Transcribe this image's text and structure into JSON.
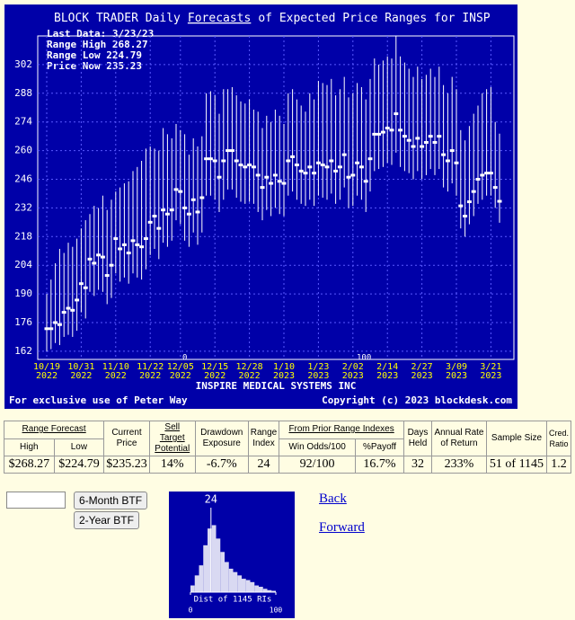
{
  "chart_data": [
    {
      "type": "range_bar",
      "title_prefix": "BLOCK TRADER Daily",
      "title_link": "Forecasts",
      "title_suffix": "of Expected Price Ranges for  INSP",
      "info": [
        "Last Data: 3/23/23",
        "Range High 268.27",
        "Range Low  224.79",
        "Price Now  235.23"
      ],
      "company": "INSPIRE MEDICAL SYSTEMS INC",
      "footer_left": "For exclusive use of Peter Way",
      "footer_right": "Copyright (c) 2023 blockdesk.com",
      "annotations": [
        "0",
        "100"
      ],
      "categories": [
        "10/19 2022",
        null,
        null,
        null,
        null,
        null,
        null,
        null,
        "10/31 2022",
        null,
        null,
        null,
        null,
        null,
        null,
        null,
        "11/10 2022",
        null,
        null,
        null,
        null,
        null,
        null,
        null,
        "11/22 2022",
        null,
        null,
        null,
        null,
        null,
        null,
        "12/05 2022",
        null,
        null,
        null,
        null,
        null,
        null,
        null,
        "12/15 2022",
        null,
        null,
        null,
        null,
        null,
        null,
        null,
        "12/28 2022",
        null,
        null,
        null,
        null,
        null,
        null,
        null,
        "1/10 2023",
        null,
        null,
        null,
        null,
        null,
        null,
        null,
        "1/23 2023",
        null,
        null,
        null,
        null,
        null,
        null,
        null,
        "2/02 2023",
        null,
        null,
        null,
        null,
        null,
        null,
        null,
        "2/14 2023",
        null,
        null,
        null,
        null,
        null,
        null,
        null,
        "2/27 2023",
        null,
        null,
        null,
        null,
        null,
        null,
        null,
        "3/09 2023",
        null,
        null,
        null,
        null,
        null,
        null,
        null,
        "3/21 2023",
        null,
        null
      ],
      "series": [
        {
          "color": "#ffffff",
          "values": [
            190,
            197,
            205,
            212,
            210,
            215,
            213,
            217,
            222,
            226,
            229,
            233,
            232,
            238,
            231,
            236,
            240,
            242,
            244,
            245,
            250,
            252,
            255,
            261,
            262,
            261,
            260,
            271,
            268,
            266,
            273,
            270,
            268,
            258,
            266,
            262,
            267,
            288,
            289,
            287,
            278,
            290,
            290,
            291,
            287,
            284,
            283,
            285,
            280,
            279,
            271,
            277,
            274,
            280,
            277,
            273,
            288,
            290,
            285,
            282,
            279,
            288,
            285,
            294,
            293,
            292,
            295,
            287,
            290,
            296,
            286,
            288,
            293,
            291,
            285,
            295,
            305,
            302,
            304,
            306,
            305,
            316,
            306,
            303,
            300,
            296,
            301,
            295,
            297,
            300,
            296,
            301,
            292,
            288,
            296,
            290,
            270,
            265,
            272,
            278,
            282,
            288,
            290,
            291,
            274,
            268.27
          ]
        },
        {
          "color": "#ffffff",
          "values": [
            162,
            163,
            166,
            165,
            169,
            170,
            169,
            172,
            181,
            178,
            191,
            189,
            192,
            191,
            185,
            188,
            200,
            196,
            198,
            195,
            200,
            198,
            197,
            202,
            209,
            212,
            207,
            215,
            213,
            216,
            226,
            224,
            216,
            213,
            220,
            214,
            220,
            238,
            238,
            236,
            230,
            236,
            241,
            241,
            237,
            235,
            234,
            235,
            234,
            230,
            226,
            231,
            228,
            232,
            229,
            228,
            238,
            240,
            236,
            234,
            233,
            236,
            233,
            238,
            237,
            236,
            239,
            234,
            236,
            242,
            232,
            233,
            238,
            236,
            230,
            240,
            250,
            251,
            252,
            254,
            253,
            259,
            252,
            250,
            249,
            246,
            250,
            246,
            248,
            251,
            248,
            251,
            242,
            240,
            244,
            238,
            222,
            218,
            224,
            228,
            234,
            236,
            238,
            238,
            232,
            224.79
          ]
        },
        {
          "color": "#ffffff",
          "values": [
            173,
            173,
            176,
            175,
            181,
            183,
            182,
            187,
            195,
            193,
            207,
            205,
            209,
            208,
            199,
            204,
            217,
            212,
            214,
            210,
            216,
            214,
            213,
            217,
            225,
            228,
            222,
            231,
            229,
            231,
            241,
            240,
            232,
            229,
            236,
            230,
            237,
            256,
            256,
            255,
            247,
            255,
            260,
            260,
            255,
            253,
            252,
            253,
            252,
            248,
            242,
            247,
            244,
            248,
            245,
            244,
            255,
            257,
            253,
            250,
            249,
            252,
            249,
            254,
            253,
            252,
            255,
            250,
            252,
            258,
            247,
            248,
            254,
            252,
            245,
            256,
            268,
            268,
            269,
            271,
            270,
            278,
            270,
            267,
            265,
            262,
            266,
            262,
            264,
            267,
            264,
            267,
            258,
            255,
            260,
            254,
            233,
            228,
            235,
            240,
            246,
            248,
            249,
            249,
            242,
            235.23
          ]
        }
      ],
      "ylim": [
        158,
        316
      ],
      "yticks": [
        162,
        176,
        190,
        204,
        218,
        232,
        246,
        260,
        274,
        288,
        302
      ],
      "grid": true
    },
    {
      "type": "histogram",
      "title": "Dist of 1145 RIs",
      "marker": 24,
      "color": "#ffffff",
      "bins": [
        0,
        5,
        10,
        15,
        20,
        25,
        30,
        35,
        40,
        45,
        50,
        55,
        60,
        65,
        70,
        75,
        80,
        85,
        90,
        95,
        100
      ],
      "values": [
        10,
        25,
        40,
        70,
        95,
        100,
        80,
        60,
        45,
        35,
        30,
        25,
        20,
        18,
        15,
        10,
        8,
        5,
        3,
        2
      ],
      "xlim": [
        0,
        100
      ],
      "xticks": [
        0,
        100
      ],
      "ylim": [
        0,
        110
      ]
    }
  ],
  "table": {
    "headers": [
      "Range Forecast",
      "Current Price",
      "Sell Target Potential",
      "Drawdown Exposure",
      "Range Index",
      "From Prior Range Indexes",
      "Days Held",
      "Annual Rate of Return",
      "Sample Size",
      "Cred. Ratio"
    ],
    "subheaders": [
      "High",
      "Low",
      "Win Odds/100",
      "%Payoff"
    ],
    "row": [
      "$268.27",
      "$224.79",
      "$235.23",
      "14%",
      "-6.7%",
      "24",
      "92/100",
      "16.7%",
      "32",
      "233%",
      "51 of 1145",
      "1.2"
    ]
  },
  "controls": {
    "button_6m": "6-Month BTF",
    "button_2y": "2-Year BTF",
    "back": "Back",
    "forward": "Forward"
  }
}
